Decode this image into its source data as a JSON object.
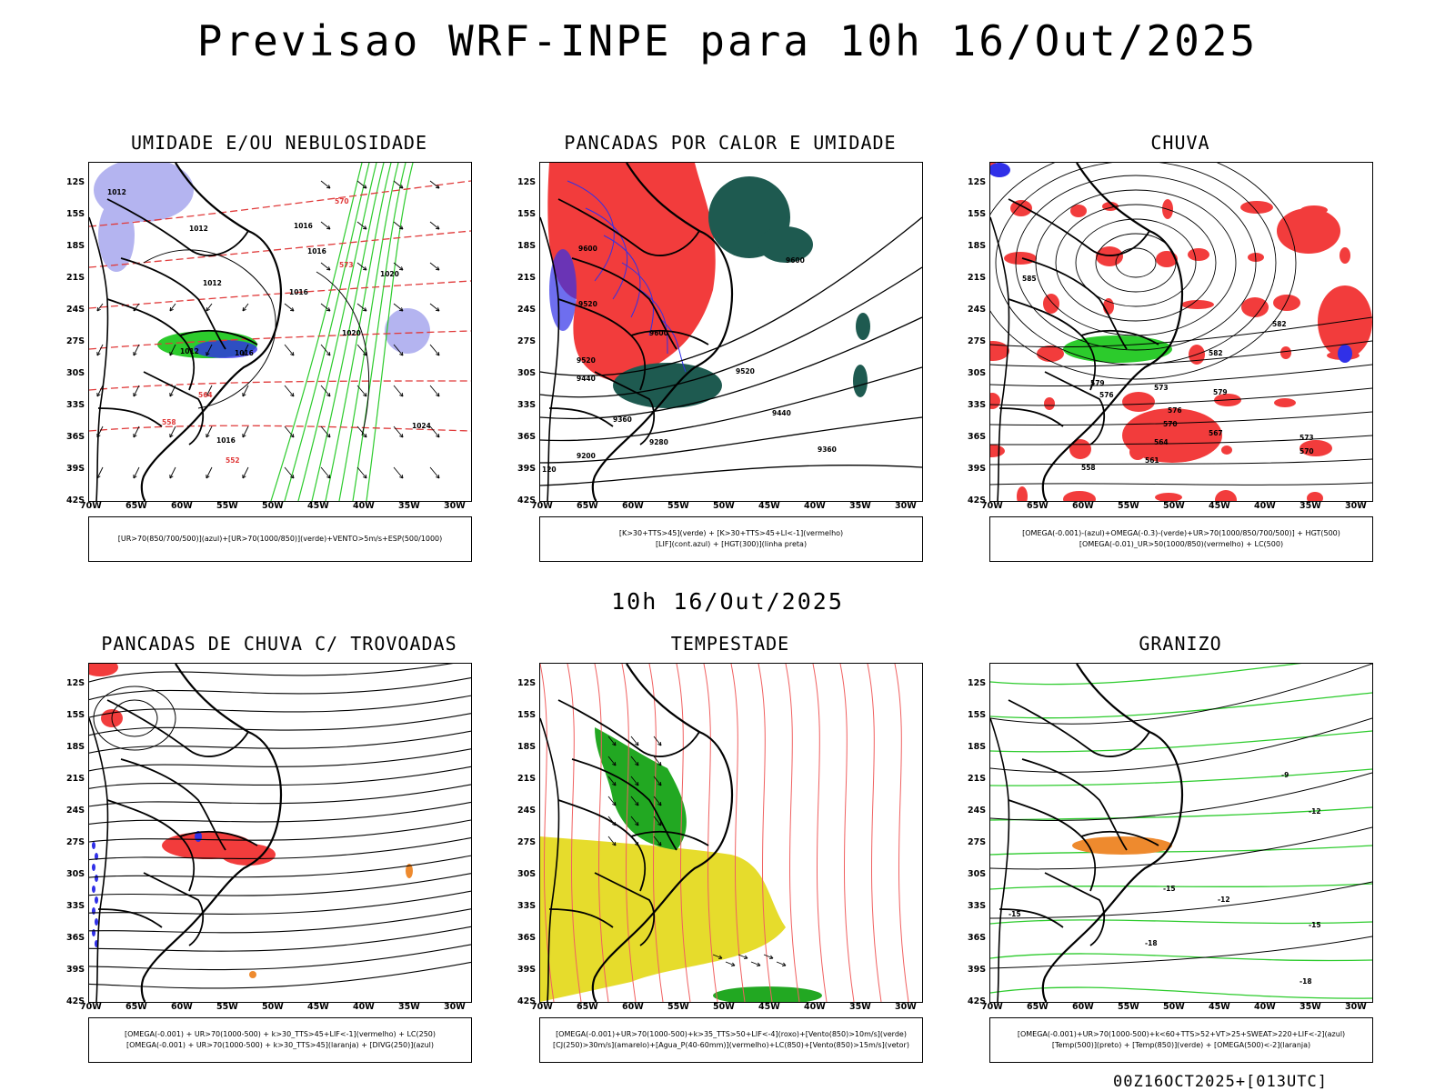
{
  "title": "Previsao WRF-INPE  para 10h 16/Out/2025",
  "subtitle": "10h 16/Out/2025",
  "footer": "00Z16OCT2025+[013UTC]",
  "lat_labels": [
    "12S",
    "15S",
    "18S",
    "21S",
    "24S",
    "27S",
    "30S",
    "33S",
    "36S",
    "39S",
    "42S"
  ],
  "lon_labels": [
    "70W",
    "65W",
    "60W",
    "55W",
    "50W",
    "45W",
    "40W",
    "35W",
    "30W"
  ],
  "panels": [
    {
      "title": "UMIDADE E/OU NEBULOSIDADE",
      "legend": [
        "[UR>70(850/700/500)](azul)+[UR>70(1000/850)](verde)+VENTO>5m/s+ESP(500/1000)"
      ]
    },
    {
      "title": "PANCADAS POR CALOR E UMIDADE",
      "legend": [
        "[K>30+TTS>45](verde)  +  [K>30+TTS>45+LI<-1](vermelho)",
        "[LIF](cont.azul)  +  [HGT(300)](linha preta)"
      ]
    },
    {
      "title": "CHUVA",
      "legend": [
        "[OMEGA(-0.001)-(azul)+OMEGA(-0.3)-(verde)+UR>70(1000/850/700/500)]  +  HGT(500)",
        "[OMEGA(-0.01)_UR>50(1000/850)(vermelho)  +  LC(500)"
      ]
    },
    {
      "title": "PANCADAS DE CHUVA C/ TROVOADAS",
      "legend": [
        "[OMEGA(-0.001) + UR>70(1000-500) + k>30_TTS>45+LIF<-1](vermelho) + LC(250)",
        "[OMEGA(-0.001) + UR>70(1000-500) + k>30_TTS>45](laranja) + [DIVG(250)](azul)"
      ]
    },
    {
      "title": "TEMPESTADE",
      "legend": [
        "[OMEGA(-0.001)+UR>70(1000-500)+k>35_TTS>50+LIF<-4](roxo)+[Vento(850)>10m/s](verde)",
        "[CJ(250)>30m/s](amarelo)+[Agua_P(40-60mm)](vermelho)+LC(850)+[Vento(850)>15m/s](vetor)"
      ]
    },
    {
      "title": "GRANIZO",
      "legend": [
        "[OMEGA(-0.001)+UR>70(1000-500)+k<60+TTS>52+VT>25+SWEAT>220+LIF<-2](azul)",
        "[Temp(500)](preto)  +  [Temp(850)](verde)  +  [OMEGA(500)<-2](laranja)"
      ]
    }
  ],
  "contour_labels": {
    "p1": [
      "1012",
      "1012",
      "1016",
      "1012",
      "1016",
      "1020",
      "1020",
      "1016",
      "1012",
      "1016",
      "1024",
      "1016",
      "570",
      "573",
      "564",
      "558",
      "552"
    ],
    "p2": [
      "9600",
      "9520",
      "9600",
      "9520",
      "9440",
      "9360",
      "9280",
      "9200",
      "9600",
      "9520",
      "9440",
      "9360",
      "120"
    ],
    "p3": [
      "585",
      "582",
      "579",
      "576",
      "573",
      "570",
      "567",
      "564",
      "561",
      "558",
      "579",
      "576",
      "573",
      "570",
      "582"
    ],
    "p6": [
      "-9",
      "-12",
      "-12",
      "-15",
      "-15",
      "-18",
      "-15",
      "-18"
    ]
  },
  "colors": {
    "red": "#f23c3c",
    "green": "#2ccb2c",
    "blue": "#3030e8",
    "lavender": "#b4b4f0",
    "darkteal": "#1e5a50",
    "yellow": "#e6dc2c",
    "orange": "#ee8a2e",
    "salmon": "#f06060"
  }
}
